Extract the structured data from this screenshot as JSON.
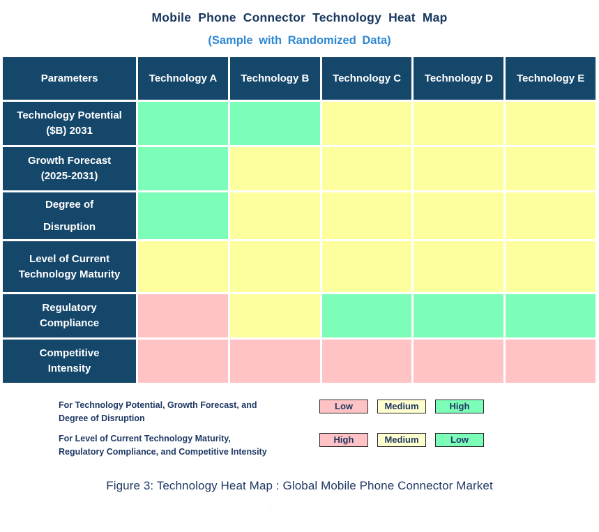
{
  "header": {
    "title": "Mobile Phone Connector Technology Heat Map",
    "subtitle": "(Sample with Randomized Data)"
  },
  "colors": {
    "green": "#7cfdb8",
    "yellow": "#fdff9e",
    "pink": "#ffc3c5",
    "pale_yellow": "#ffffcf",
    "header_navy": "#15476b",
    "title_navy": "#17365d",
    "subtitle_blue": "#2e87d2",
    "legend_text_navy": "#1f3864"
  },
  "chart_data": {
    "type": "heatmap",
    "columns": [
      "Parameters",
      "Technology A",
      "Technology B",
      "Technology C",
      "Technology D",
      "Technology E"
    ],
    "rows": [
      {
        "parameter": "Technology Potential\n($B) 2031",
        "cells": [
          "green",
          "green",
          "yellow",
          "yellow",
          "yellow"
        ],
        "values": [
          "High",
          "High",
          "Medium",
          "Medium",
          "Medium"
        ]
      },
      {
        "parameter": "Growth Forecast\n(2025-2031)",
        "cells": [
          "green",
          "yellow",
          "yellow",
          "yellow",
          "yellow"
        ],
        "values": [
          "High",
          "Medium",
          "Medium",
          "Medium",
          "Medium"
        ]
      },
      {
        "parameter": "Degree of\nDisruption",
        "cells": [
          "green",
          "yellow",
          "yellow",
          "yellow",
          "yellow"
        ],
        "values": [
          "High",
          "Medium",
          "Medium",
          "Medium",
          "Medium"
        ]
      },
      {
        "parameter": "Level of Current\nTechnology Maturity",
        "cells": [
          "yellow",
          "yellow",
          "yellow",
          "yellow",
          "yellow"
        ],
        "values": [
          "Medium",
          "Medium",
          "Medium",
          "Medium",
          "Medium"
        ]
      },
      {
        "parameter": "Regulatory\nCompliance",
        "cells": [
          "pink",
          "yellow",
          "green",
          "green",
          "green"
        ],
        "values": [
          "High",
          "Medium",
          "Low",
          "Low",
          "Low"
        ]
      },
      {
        "parameter": "Competitive\nIntensity",
        "cells": [
          "pink",
          "pink",
          "pink",
          "pink",
          "pink"
        ],
        "values": [
          "High",
          "High",
          "High",
          "High",
          "High"
        ]
      }
    ]
  },
  "legend": {
    "rows": [
      {
        "description": "For Technology Potential, Growth Forecast, and\nDegree of Disruption",
        "boxes": [
          {
            "label": "Low",
            "level": "pink"
          },
          {
            "label": "Medium",
            "level": "pale_yellow"
          },
          {
            "label": "High",
            "level": "green"
          }
        ]
      },
      {
        "description": "For Level of Current Technology Maturity,\nRegulatory Compliance, and Competitive Intensity",
        "boxes": [
          {
            "label": "High",
            "level": "pink"
          },
          {
            "label": "Medium",
            "level": "pale_yellow"
          },
          {
            "label": "Low",
            "level": "green"
          }
        ]
      }
    ]
  },
  "footer": {
    "caption": "Figure 3: Technology Heat Map :  Global Mobile Phone Connector Market",
    "stray_mark": ":"
  }
}
